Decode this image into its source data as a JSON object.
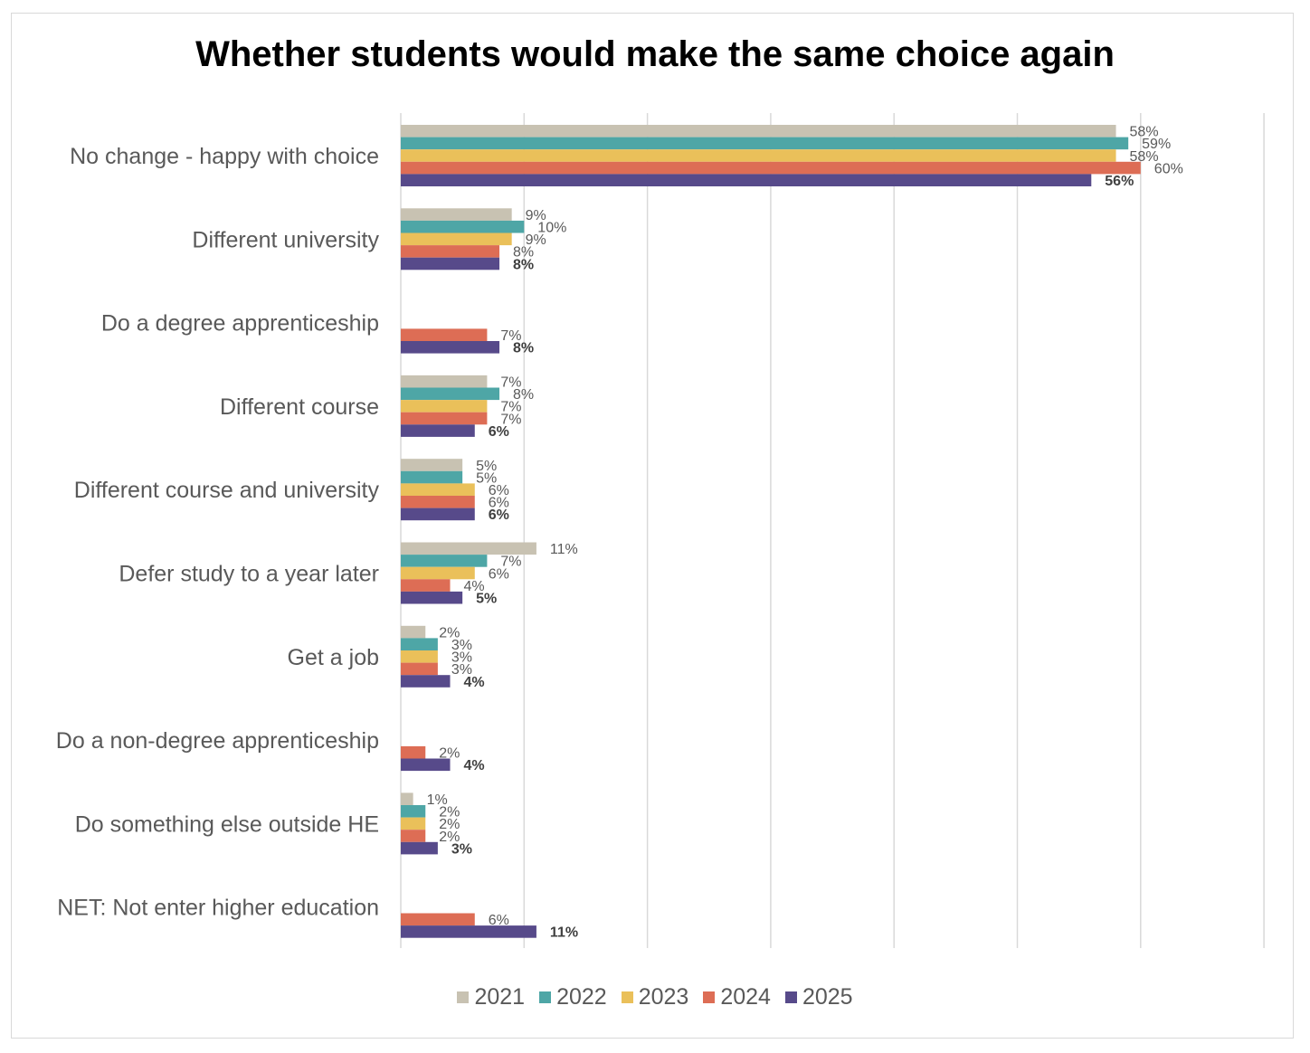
{
  "chart_data": {
    "type": "bar",
    "orientation": "horizontal",
    "title": "Whether students would make the same choice again",
    "xlabel": "",
    "ylabel": "",
    "xlim": [
      0,
      70
    ],
    "grid": true,
    "legend_position": "bottom",
    "categories": [
      "No change - happy with choice",
      "Different university",
      "Do a degree apprenticeship",
      "Different course",
      "Different course and university",
      "Defer study to a year later",
      "Get a job",
      "Do a non-degree apprenticeship",
      "Do something else outside HE",
      "NET: Not enter higher education"
    ],
    "series": [
      {
        "name": "2021",
        "color": "#c8c2b2",
        "values": [
          58,
          9,
          null,
          7,
          5,
          11,
          2,
          null,
          1,
          null
        ]
      },
      {
        "name": "2022",
        "color": "#4ea6a6",
        "values": [
          59,
          10,
          null,
          8,
          5,
          7,
          3,
          null,
          2,
          null
        ]
      },
      {
        "name": "2023",
        "color": "#eac05a",
        "values": [
          58,
          9,
          null,
          7,
          6,
          6,
          3,
          null,
          2,
          null
        ]
      },
      {
        "name": "2024",
        "color": "#dd6d55",
        "values": [
          60,
          8,
          7,
          7,
          6,
          4,
          3,
          2,
          2,
          6
        ]
      },
      {
        "name": "2025",
        "color": "#574a8a",
        "values": [
          56,
          8,
          8,
          6,
          6,
          5,
          4,
          4,
          3,
          11
        ]
      }
    ],
    "bold_series": "2025",
    "value_suffix": "%"
  }
}
